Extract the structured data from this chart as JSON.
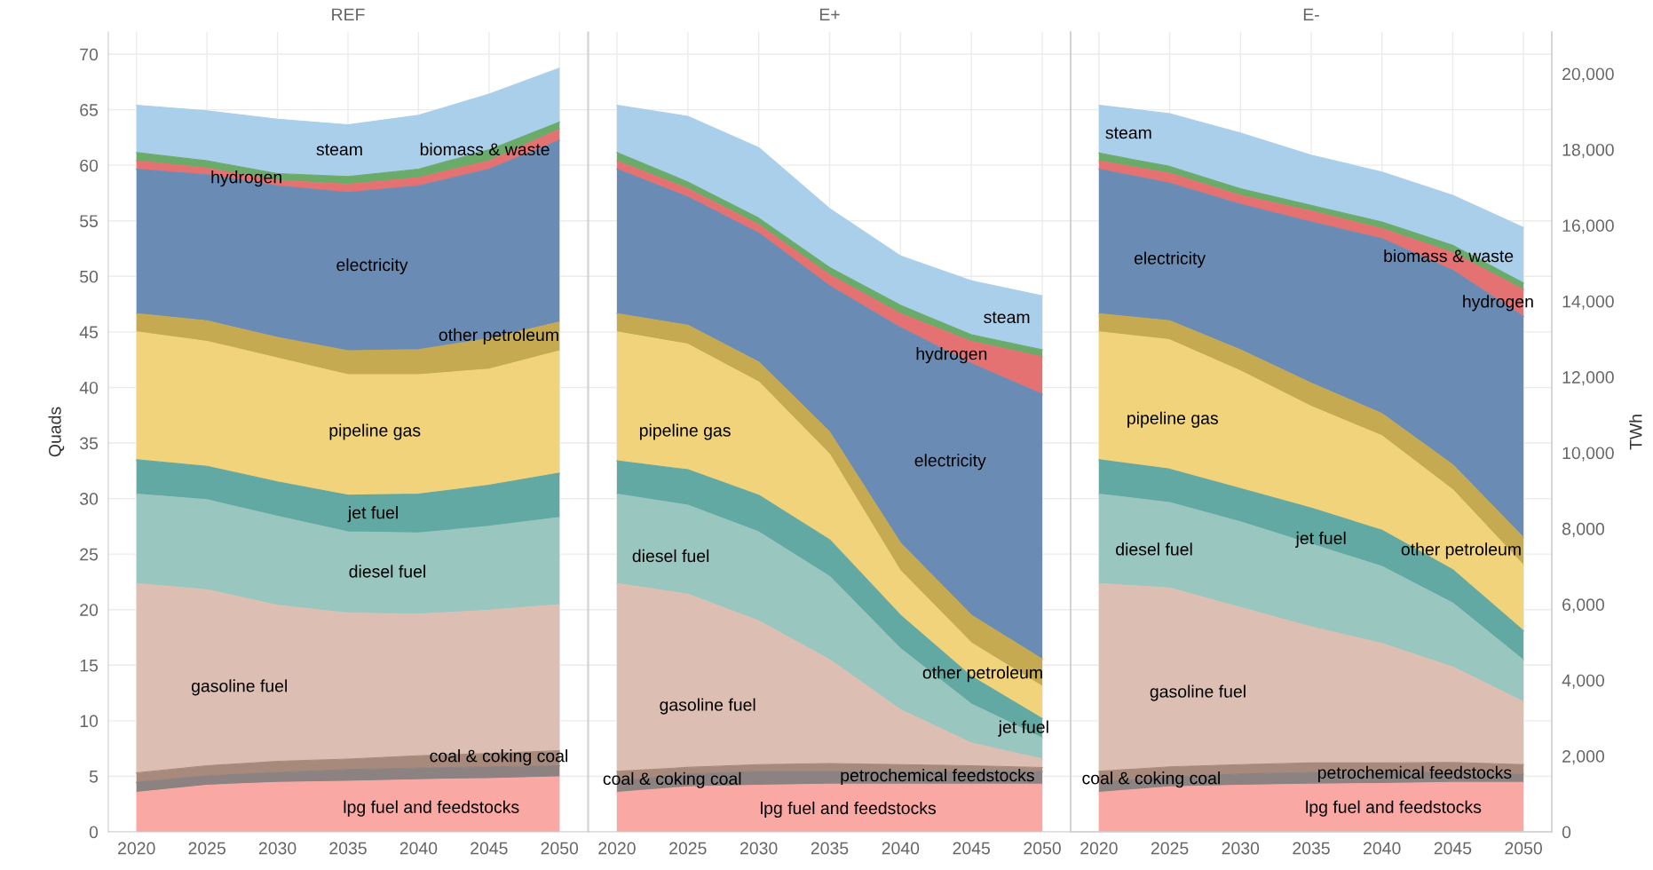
{
  "chart_data": [
    {
      "type": "area",
      "stacked": true,
      "title": "REF",
      "ylabel": "Quads",
      "x": [
        2020,
        2025,
        2030,
        2035,
        2040,
        2045,
        2050
      ],
      "xlim": [
        2018,
        2052
      ],
      "xticks": [
        2020,
        2025,
        2030,
        2035,
        2040,
        2045,
        2050
      ],
      "ylim": [
        0,
        72
      ],
      "yticks": [
        0,
        5,
        10,
        15,
        20,
        25,
        30,
        35,
        40,
        45,
        50,
        55,
        60,
        65,
        70
      ],
      "grid": true,
      "legend": false,
      "series": [
        {
          "name": "lpg fuel and feedstocks",
          "color": "#f9a8a4",
          "values": [
            3.55,
            4.2,
            4.45,
            4.55,
            4.7,
            4.8,
            4.95
          ]
        },
        {
          "color": "#8c8282",
          "values": [
            0.9,
            0.85,
            0.9,
            1.05,
            1.05,
            1.05,
            1.0
          ]
        },
        {
          "name": "coal & coking coal",
          "color": "#a88a7c",
          "values": [
            0.85,
            0.9,
            1.0,
            0.95,
            1.1,
            1.2,
            1.35
          ]
        },
        {
          "name": "gasoline fuel",
          "color": "#dcbfb2",
          "values": [
            17.05,
            15.85,
            14.05,
            13.15,
            12.75,
            12.9,
            13.15
          ]
        },
        {
          "name": "diesel fuel",
          "color": "#99c6bf",
          "values": [
            8.05,
            8.1,
            8.0,
            7.3,
            7.3,
            7.55,
            7.85
          ]
        },
        {
          "name": "jet fuel",
          "color": "#62a8a3",
          "values": [
            3.1,
            3.0,
            3.1,
            3.3,
            3.5,
            3.7,
            4.0
          ]
        },
        {
          "name": "pipeline gas",
          "color": "#f0d37b",
          "values": [
            11.5,
            11.25,
            11.15,
            10.85,
            10.75,
            10.45,
            11.0
          ]
        },
        {
          "name": "other petroleum",
          "color": "#c5aa52",
          "values": [
            1.65,
            1.85,
            1.85,
            2.15,
            2.25,
            2.75,
            2.6
          ]
        },
        {
          "name": "electricity",
          "color": "#6a8cb4",
          "values": [
            13.0,
            13.15,
            13.65,
            14.25,
            14.75,
            15.25,
            16.35
          ]
        },
        {
          "name": "hydrogen",
          "color": "#e57272",
          "values": [
            0.75,
            0.6,
            0.5,
            0.75,
            0.75,
            0.75,
            1.0
          ]
        },
        {
          "name": "biomass & waste",
          "color": "#6aab6a",
          "values": [
            0.75,
            0.65,
            0.6,
            0.7,
            0.75,
            1.0,
            0.65
          ]
        },
        {
          "name": "steam",
          "color": "#aacfea",
          "values": [
            4.25,
            4.5,
            4.9,
            4.65,
            4.85,
            5.0,
            4.85
          ]
        }
      ]
    },
    {
      "type": "area",
      "stacked": true,
      "title": "E+",
      "x": [
        2020,
        2025,
        2030,
        2035,
        2040,
        2045,
        2050
      ],
      "xlim": [
        2018,
        2052
      ],
      "xticks": [
        2020,
        2025,
        2030,
        2035,
        2040,
        2045,
        2050
      ],
      "ylim": [
        0,
        72
      ],
      "yticks": [
        0,
        5,
        10,
        15,
        20,
        25,
        30,
        35,
        40,
        45,
        50,
        55,
        60,
        65,
        70
      ],
      "tick_labels": "x",
      "grid": true,
      "legend": false,
      "series": [
        {
          "name": "lpg fuel and feedstocks",
          "color": "#f9a8a4",
          "values": [
            3.55,
            4.05,
            4.2,
            4.3,
            4.3,
            4.3,
            4.3
          ]
        },
        {
          "name": "petrochemical feedstocks",
          "color": "#8c8282",
          "values": [
            1.0,
            1.15,
            1.25,
            1.15,
            1.15,
            1.15,
            1.15
          ]
        },
        {
          "name": "coal & coking coal",
          "color": "#a88a7c",
          "values": [
            0.9,
            0.6,
            0.6,
            0.7,
            0.6,
            0.5,
            0.35
          ]
        },
        {
          "name": "gasoline fuel",
          "color": "#dcbfb2",
          "values": [
            16.9,
            15.6,
            12.95,
            9.35,
            4.95,
            2.05,
            0.75
          ]
        },
        {
          "name": "diesel fuel",
          "color": "#99c6bf",
          "values": [
            8.05,
            8.0,
            8.0,
            7.5,
            5.5,
            3.5,
            1.9
          ]
        },
        {
          "name": "jet fuel",
          "color": "#62a8a3",
          "values": [
            3.0,
            3.2,
            3.3,
            3.3,
            3.0,
            2.5,
            1.75
          ]
        },
        {
          "name": "pipeline gas",
          "color": "#f0d37b",
          "values": [
            11.6,
            11.3,
            10.2,
            7.7,
            4.0,
            3.0,
            2.9
          ]
        },
        {
          "name": "other petroleum",
          "color": "#c5aa52",
          "values": [
            1.65,
            1.7,
            1.8,
            2.0,
            2.5,
            2.5,
            2.45
          ]
        },
        {
          "name": "electricity",
          "color": "#6a8cb4",
          "values": [
            13.0,
            11.55,
            11.6,
            13.15,
            19.4,
            22.65,
            23.85
          ]
        },
        {
          "name": "hydrogen",
          "color": "#e57272",
          "values": [
            0.75,
            0.75,
            0.75,
            1.0,
            1.25,
            2.0,
            3.35
          ]
        },
        {
          "color": "#6aab6a",
          "values": [
            0.75,
            0.6,
            0.6,
            0.65,
            0.75,
            0.6,
            0.65
          ]
        },
        {
          "name": "steam",
          "color": "#aacfea",
          "values": [
            4.25,
            5.9,
            6.35,
            5.3,
            4.45,
            4.85,
            4.85
          ]
        }
      ]
    },
    {
      "type": "area",
      "stacked": true,
      "title": "E-",
      "y2label": "TWh",
      "x": [
        2020,
        2025,
        2030,
        2035,
        2040,
        2045,
        2050
      ],
      "xlim": [
        2018,
        2052
      ],
      "xticks": [
        2020,
        2025,
        2030,
        2035,
        2040,
        2045,
        2050
      ],
      "ylim": [
        0,
        72
      ],
      "yticks": [
        0,
        5,
        10,
        15,
        20,
        25,
        30,
        35,
        40,
        45,
        50,
        55,
        60,
        65,
        70
      ],
      "tick_labels": "x",
      "y2lim": [
        0,
        21101
      ],
      "y2ticks": [
        {
          "value": 0,
          "label": "0"
        },
        {
          "value": 2000,
          "label": "2,000"
        },
        {
          "value": 4000,
          "label": "4,000"
        },
        {
          "value": 6000,
          "label": "6,000"
        },
        {
          "value": 8000,
          "label": "8,000"
        },
        {
          "value": 10000,
          "label": "10,000"
        },
        {
          "value": 12000,
          "label": "12,000"
        },
        {
          "value": 14000,
          "label": "14,000"
        },
        {
          "value": 16000,
          "label": "16,000"
        },
        {
          "value": 18000,
          "label": "18,000"
        },
        {
          "value": 20000,
          "label": "20,000"
        }
      ],
      "grid": true,
      "legend": false,
      "series": [
        {
          "name": "lpg fuel and feedstocks",
          "color": "#f9a8a4",
          "values": [
            3.55,
            4.05,
            4.2,
            4.3,
            4.35,
            4.45,
            4.45
          ]
        },
        {
          "name": "petrochemical feedstocks",
          "color": "#8c8282",
          "values": [
            0.9,
            0.9,
            1.0,
            1.05,
            1.0,
            0.9,
            0.75
          ]
        },
        {
          "name": "coal & coking coal",
          "color": "#a88a7c",
          "values": [
            1.0,
            0.9,
            0.85,
            0.85,
            0.85,
            0.9,
            0.85
          ]
        },
        {
          "name": "gasoline fuel",
          "color": "#dcbfb2",
          "values": [
            16.9,
            16.1,
            14.15,
            12.25,
            10.75,
            8.6,
            5.65
          ]
        },
        {
          "name": "diesel fuel",
          "color": "#99c6bf",
          "values": [
            8.05,
            7.7,
            7.7,
            7.45,
            6.95,
            5.75,
            3.75
          ]
        },
        {
          "name": "jet fuel",
          "color": "#62a8a3",
          "values": [
            3.1,
            3.0,
            3.0,
            3.25,
            3.25,
            3.0,
            2.65
          ]
        },
        {
          "name": "pipeline gas",
          "color": "#f0d37b",
          "values": [
            11.5,
            11.65,
            10.6,
            9.15,
            8.5,
            7.2,
            5.9
          ]
        },
        {
          "name": "other petroleum",
          "color": "#c5aa52",
          "values": [
            1.65,
            1.7,
            1.9,
            2.1,
            2.0,
            2.25,
            2.5
          ]
        },
        {
          "name": "electricity",
          "color": "#6a8cb4",
          "values": [
            13.0,
            12.4,
            13.1,
            14.5,
            15.75,
            17.5,
            19.9
          ]
        },
        {
          "name": "hydrogen",
          "color": "#e57272",
          "values": [
            0.75,
            0.9,
            0.8,
            1.0,
            0.9,
            1.6,
            2.4
          ]
        },
        {
          "name": "biomass & waste",
          "color": "#6aab6a",
          "values": [
            0.7,
            0.6,
            0.6,
            0.5,
            0.6,
            0.65,
            0.6
          ]
        },
        {
          "name": "steam",
          "color": "#aacfea",
          "values": [
            4.3,
            4.75,
            5.0,
            4.5,
            4.5,
            4.5,
            5.0
          ]
        }
      ]
    }
  ]
}
